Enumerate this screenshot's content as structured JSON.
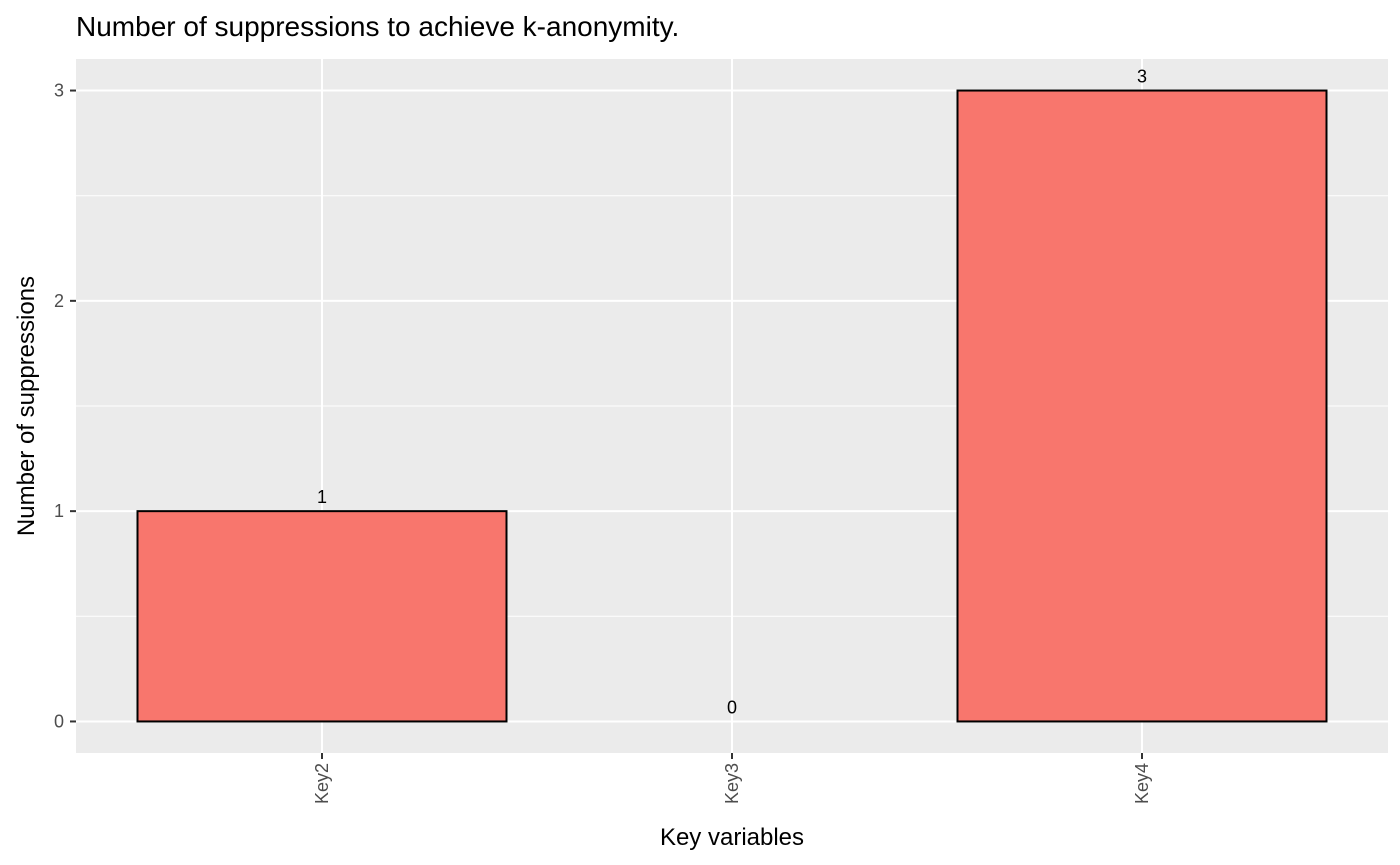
{
  "chart_data": {
    "type": "bar",
    "title": "Number of suppressions to achieve k-anonymity.",
    "xlabel": "Key variables",
    "ylabel": "Number of suppressions",
    "categories": [
      "Key2",
      "Key3",
      "Key4"
    ],
    "values": [
      1,
      0,
      3
    ],
    "data_labels": [
      "1",
      "0",
      "3"
    ],
    "yticks": [
      0,
      1,
      2,
      3
    ],
    "ytick_labels": [
      "0",
      "1",
      "2",
      "3"
    ],
    "ylim": [
      -0.15,
      3.15
    ],
    "grid": true,
    "legend": "none",
    "x_tick_rotation": "vertical",
    "colors": {
      "bar_fill": "#F8766D",
      "bar_stroke": "#000000",
      "panel_background": "#EBEBEB",
      "grid": "#FFFFFF",
      "tick": "#333333"
    }
  }
}
